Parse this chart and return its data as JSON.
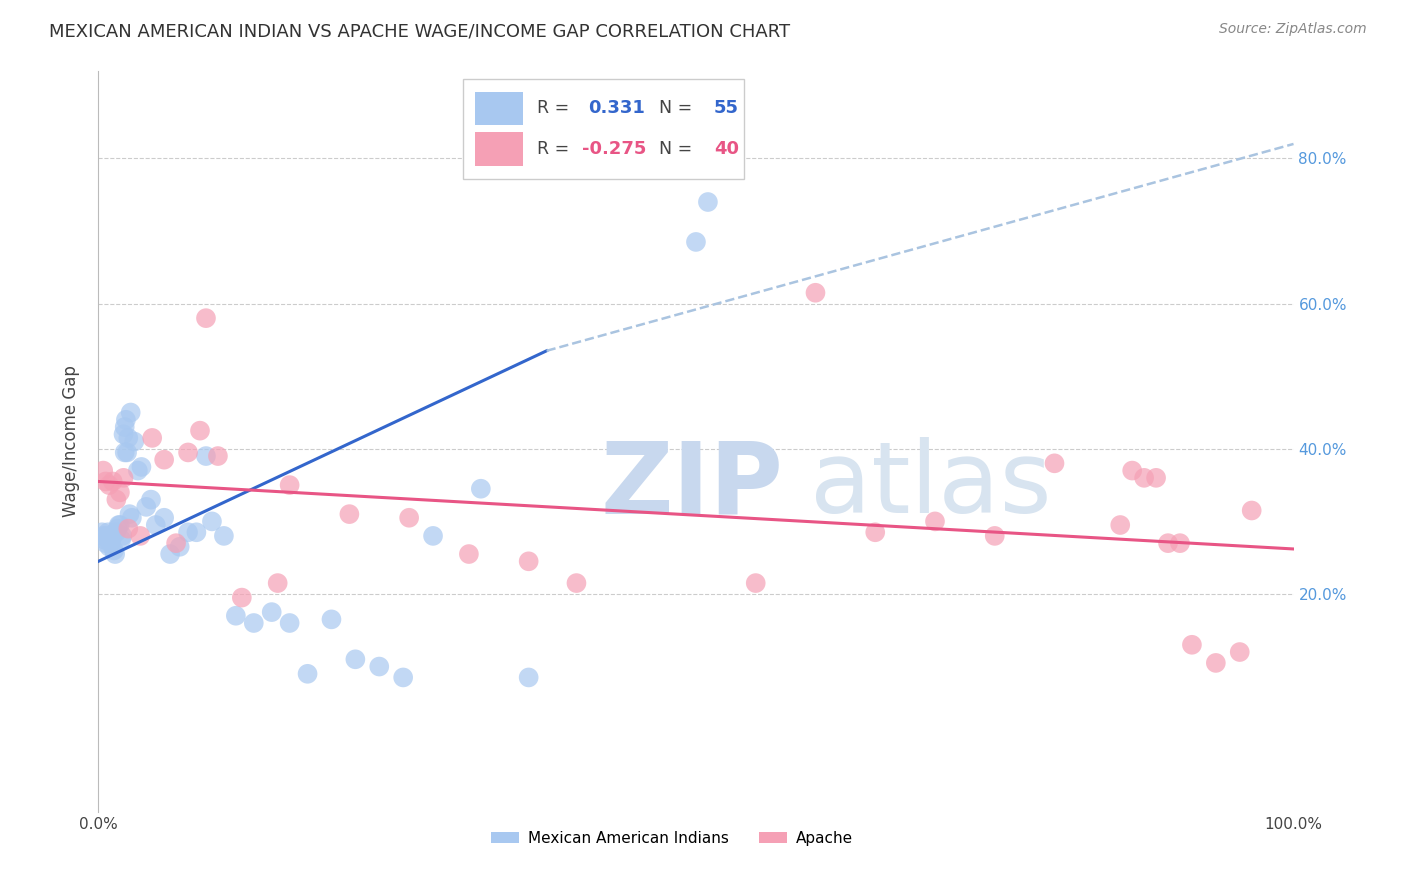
{
  "title": "MEXICAN AMERICAN INDIAN VS APACHE WAGE/INCOME GAP CORRELATION CHART",
  "source": "Source: ZipAtlas.com",
  "ylabel": "Wage/Income Gap",
  "y_ticks": [
    0.2,
    0.4,
    0.6,
    0.8
  ],
  "y_tick_labels": [
    "20.0%",
    "40.0%",
    "60.0%",
    "80.0%"
  ],
  "xlim": [
    0.0,
    1.0
  ],
  "ylim": [
    -0.1,
    0.92
  ],
  "blue_R": "0.331",
  "blue_N": "55",
  "pink_R": "-0.275",
  "pink_N": "40",
  "blue_label": "Mexican American Indians",
  "pink_label": "Apache",
  "blue_color": "#a8c8f0",
  "pink_color": "#f5a0b5",
  "blue_line_color": "#3366cc",
  "pink_line_color": "#e85585",
  "dashed_line_color": "#aac4e0",
  "background_color": "#ffffff",
  "grid_color": "#cccccc",
  "watermark_zip": "ZIP",
  "watermark_atlas": "atlas",
  "blue_points_x": [
    0.003,
    0.004,
    0.005,
    0.006,
    0.007,
    0.008,
    0.009,
    0.01,
    0.011,
    0.012,
    0.013,
    0.014,
    0.015,
    0.016,
    0.017,
    0.018,
    0.019,
    0.02,
    0.021,
    0.022,
    0.023,
    0.025,
    0.027,
    0.03,
    0.033,
    0.036,
    0.04,
    0.044,
    0.048,
    0.055,
    0.06,
    0.068,
    0.075,
    0.082,
    0.09,
    0.095,
    0.105,
    0.115,
    0.13,
    0.145,
    0.16,
    0.175,
    0.195,
    0.215,
    0.235,
    0.255,
    0.28,
    0.32,
    0.36,
    0.5,
    0.022,
    0.024,
    0.026,
    0.028,
    0.51
  ],
  "blue_points_y": [
    0.285,
    0.28,
    0.275,
    0.27,
    0.28,
    0.285,
    0.265,
    0.27,
    0.275,
    0.28,
    0.26,
    0.255,
    0.285,
    0.29,
    0.295,
    0.295,
    0.275,
    0.28,
    0.42,
    0.43,
    0.44,
    0.415,
    0.45,
    0.41,
    0.37,
    0.375,
    0.32,
    0.33,
    0.295,
    0.305,
    0.255,
    0.265,
    0.285,
    0.285,
    0.39,
    0.3,
    0.28,
    0.17,
    0.16,
    0.175,
    0.16,
    0.09,
    0.165,
    0.11,
    0.1,
    0.085,
    0.28,
    0.345,
    0.085,
    0.685,
    0.395,
    0.395,
    0.31,
    0.305,
    0.74
  ],
  "pink_points_x": [
    0.004,
    0.006,
    0.009,
    0.012,
    0.015,
    0.018,
    0.021,
    0.025,
    0.035,
    0.045,
    0.055,
    0.065,
    0.075,
    0.085,
    0.12,
    0.16,
    0.21,
    0.26,
    0.31,
    0.36,
    0.55,
    0.6,
    0.65,
    0.7,
    0.75,
    0.8,
    0.855,
    0.865,
    0.875,
    0.885,
    0.895,
    0.905,
    0.915,
    0.935,
    0.955,
    0.965,
    0.09,
    0.1,
    0.15,
    0.4
  ],
  "pink_points_y": [
    0.37,
    0.355,
    0.35,
    0.355,
    0.33,
    0.34,
    0.36,
    0.29,
    0.28,
    0.415,
    0.385,
    0.27,
    0.395,
    0.425,
    0.195,
    0.35,
    0.31,
    0.305,
    0.255,
    0.245,
    0.215,
    0.615,
    0.285,
    0.3,
    0.28,
    0.38,
    0.295,
    0.37,
    0.36,
    0.36,
    0.27,
    0.27,
    0.13,
    0.105,
    0.12,
    0.315,
    0.58,
    0.39,
    0.215,
    0.215
  ],
  "blue_trend_x0": 0.0,
  "blue_trend_y0": 0.245,
  "blue_trend_x1": 0.375,
  "blue_trend_y1": 0.535,
  "dashed_trend_x0": 0.375,
  "dashed_trend_y0": 0.535,
  "dashed_trend_x1": 1.0,
  "dashed_trend_y1": 0.82,
  "pink_trend_x0": 0.0,
  "pink_trend_y0": 0.355,
  "pink_trend_x1": 1.0,
  "pink_trend_y1": 0.262
}
